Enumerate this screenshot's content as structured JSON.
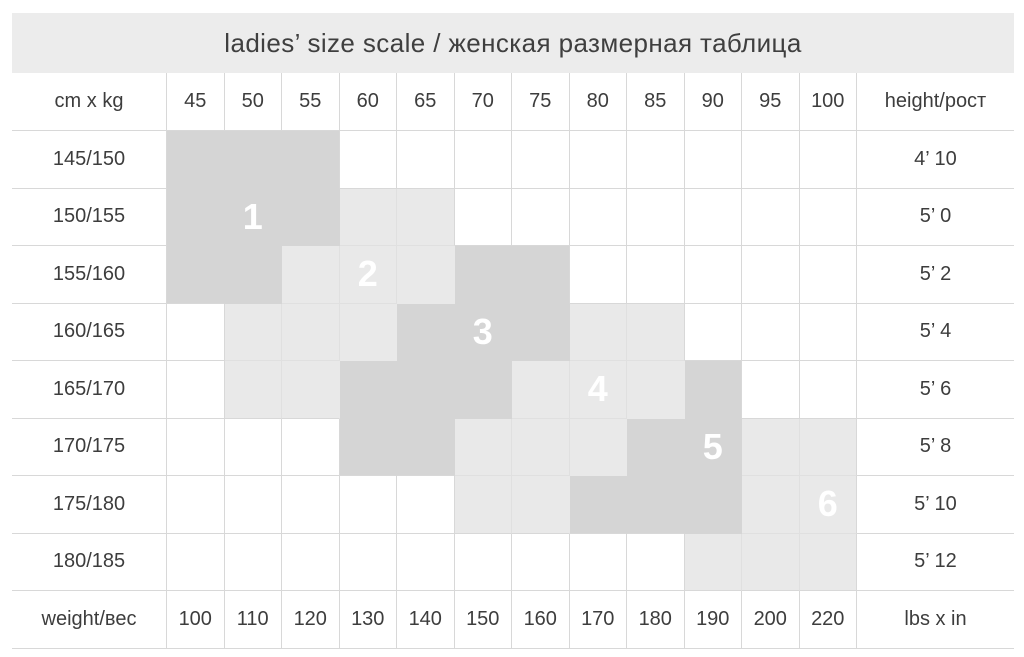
{
  "title": "ladies’ size scale / женская размерная таблица",
  "corner_label": "cm x kg",
  "height_header": "height/рост",
  "weight_label": "weight/вес",
  "lbs_label": "lbs x in",
  "weights_kg": [
    "45",
    "50",
    "55",
    "60",
    "65",
    "70",
    "75",
    "80",
    "85",
    "90",
    "95",
    "100"
  ],
  "weights_lbs": [
    "100",
    "110",
    "120",
    "130",
    "140",
    "150",
    "160",
    "170",
    "180",
    "190",
    "200",
    "220"
  ],
  "rows": [
    {
      "cm": "145/150",
      "ft": "4’ 10",
      "shades": [
        2,
        2,
        2,
        0,
        0,
        0,
        0,
        0,
        0,
        0,
        0,
        0
      ],
      "size": null
    },
    {
      "cm": "150/155",
      "ft": "5’ 0",
      "shades": [
        2,
        2,
        2,
        1,
        1,
        0,
        0,
        0,
        0,
        0,
        0,
        0
      ],
      "size": {
        "label": "1",
        "col": 1
      }
    },
    {
      "cm": "155/160",
      "ft": "5’ 2",
      "shades": [
        2,
        2,
        1,
        1,
        1,
        2,
        2,
        0,
        0,
        0,
        0,
        0
      ],
      "size": {
        "label": "2",
        "col": 3
      }
    },
    {
      "cm": "160/165",
      "ft": "5’ 4",
      "shades": [
        0,
        1,
        1,
        1,
        2,
        2,
        2,
        1,
        1,
        0,
        0,
        0
      ],
      "size": {
        "label": "3",
        "col": 5
      }
    },
    {
      "cm": "165/170",
      "ft": "5’ 6",
      "shades": [
        0,
        1,
        1,
        2,
        2,
        2,
        1,
        1,
        1,
        2,
        0,
        0
      ],
      "size": {
        "label": "4",
        "col": 7
      }
    },
    {
      "cm": "170/175",
      "ft": "5’ 8",
      "shades": [
        0,
        0,
        0,
        2,
        2,
        1,
        1,
        1,
        2,
        2,
        1,
        1
      ],
      "size": {
        "label": "5",
        "col": 9
      }
    },
    {
      "cm": "175/180",
      "ft": "5’ 10",
      "shades": [
        0,
        0,
        0,
        0,
        0,
        1,
        1,
        2,
        2,
        2,
        1,
        1
      ],
      "size": {
        "label": "6",
        "col": 11
      }
    },
    {
      "cm": "180/185",
      "ft": "5’ 12",
      "shades": [
        0,
        0,
        0,
        0,
        0,
        0,
        0,
        0,
        0,
        1,
        1,
        1
      ],
      "size": null
    }
  ],
  "colors": {
    "dark_zone": "#d5d5d5",
    "light_zone": "#e9e9e9",
    "header_band": "#ececec",
    "grid_line": "#d8d8d8",
    "text": "#3d3d3d",
    "zone_text": "#ffffff"
  }
}
